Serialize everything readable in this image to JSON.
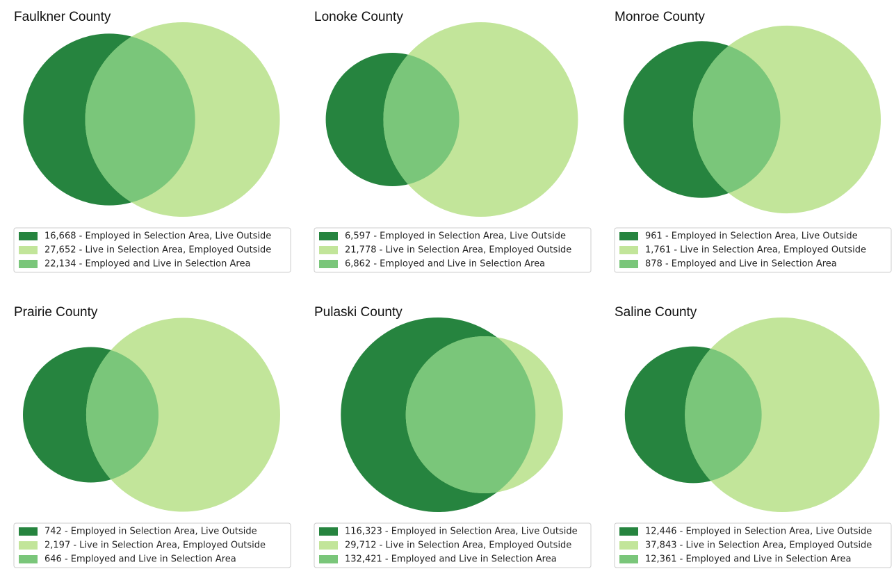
{
  "chart_data": [
    {
      "type": "venn",
      "title": "Faulkner County",
      "series": [
        {
          "name": "16,668 - Employed in Selection Area, Live Outside",
          "color": "#26843f",
          "values": [
            16668
          ]
        },
        {
          "name": "27,652 - Live in Selection Area, Employed Outside",
          "color": "#c2e59a",
          "values": [
            27652
          ]
        },
        {
          "name": "22,134 - Employed and Live in Selection Area",
          "color": "#7ac67a",
          "values": [
            22134
          ]
        }
      ]
    },
    {
      "type": "venn",
      "title": "Lonoke County",
      "series": [
        {
          "name": "6,597 - Employed in Selection Area, Live Outside",
          "color": "#26843f",
          "values": [
            6597
          ]
        },
        {
          "name": "21,778 - Live in Selection Area, Employed Outside",
          "color": "#c2e59a",
          "values": [
            21778
          ]
        },
        {
          "name": "6,862 - Employed and Live in Selection Area",
          "color": "#7ac67a",
          "values": [
            6862
          ]
        }
      ]
    },
    {
      "type": "venn",
      "title": "Monroe County",
      "series": [
        {
          "name": "961 - Employed in Selection Area, Live Outside",
          "color": "#26843f",
          "values": [
            961
          ]
        },
        {
          "name": "1,761 - Live in Selection Area, Employed Outside",
          "color": "#c2e59a",
          "values": [
            1761
          ]
        },
        {
          "name": "878 - Employed and Live in Selection Area",
          "color": "#7ac67a",
          "values": [
            878
          ]
        }
      ]
    },
    {
      "type": "venn",
      "title": "Prairie County",
      "series": [
        {
          "name": "742 - Employed in Selection Area, Live Outside",
          "color": "#26843f",
          "values": [
            742
          ]
        },
        {
          "name": "2,197 - Live in Selection Area, Employed Outside",
          "color": "#c2e59a",
          "values": [
            2197
          ]
        },
        {
          "name": "646 - Employed and Live in Selection Area",
          "color": "#7ac67a",
          "values": [
            646
          ]
        }
      ]
    },
    {
      "type": "venn",
      "title": "Pulaski County",
      "series": [
        {
          "name": "116,323 - Employed in Selection Area, Live Outside",
          "color": "#26843f",
          "values": [
            116323
          ]
        },
        {
          "name": "29,712 - Live in Selection Area, Employed Outside",
          "color": "#c2e59a",
          "values": [
            29712
          ]
        },
        {
          "name": "132,421 - Employed and Live in Selection Area",
          "color": "#7ac67a",
          "values": [
            132421
          ]
        }
      ]
    },
    {
      "type": "venn",
      "title": "Saline County",
      "series": [
        {
          "name": "12,446 - Employed in Selection Area, Live Outside",
          "color": "#26843f",
          "values": [
            12446
          ]
        },
        {
          "name": "37,843 - Live in Selection Area, Employed Outside",
          "color": "#c2e59a",
          "values": [
            37843
          ]
        },
        {
          "name": "12,361 - Employed and Live in Selection Area",
          "color": "#7ac67a",
          "values": [
            12361
          ]
        }
      ]
    }
  ]
}
